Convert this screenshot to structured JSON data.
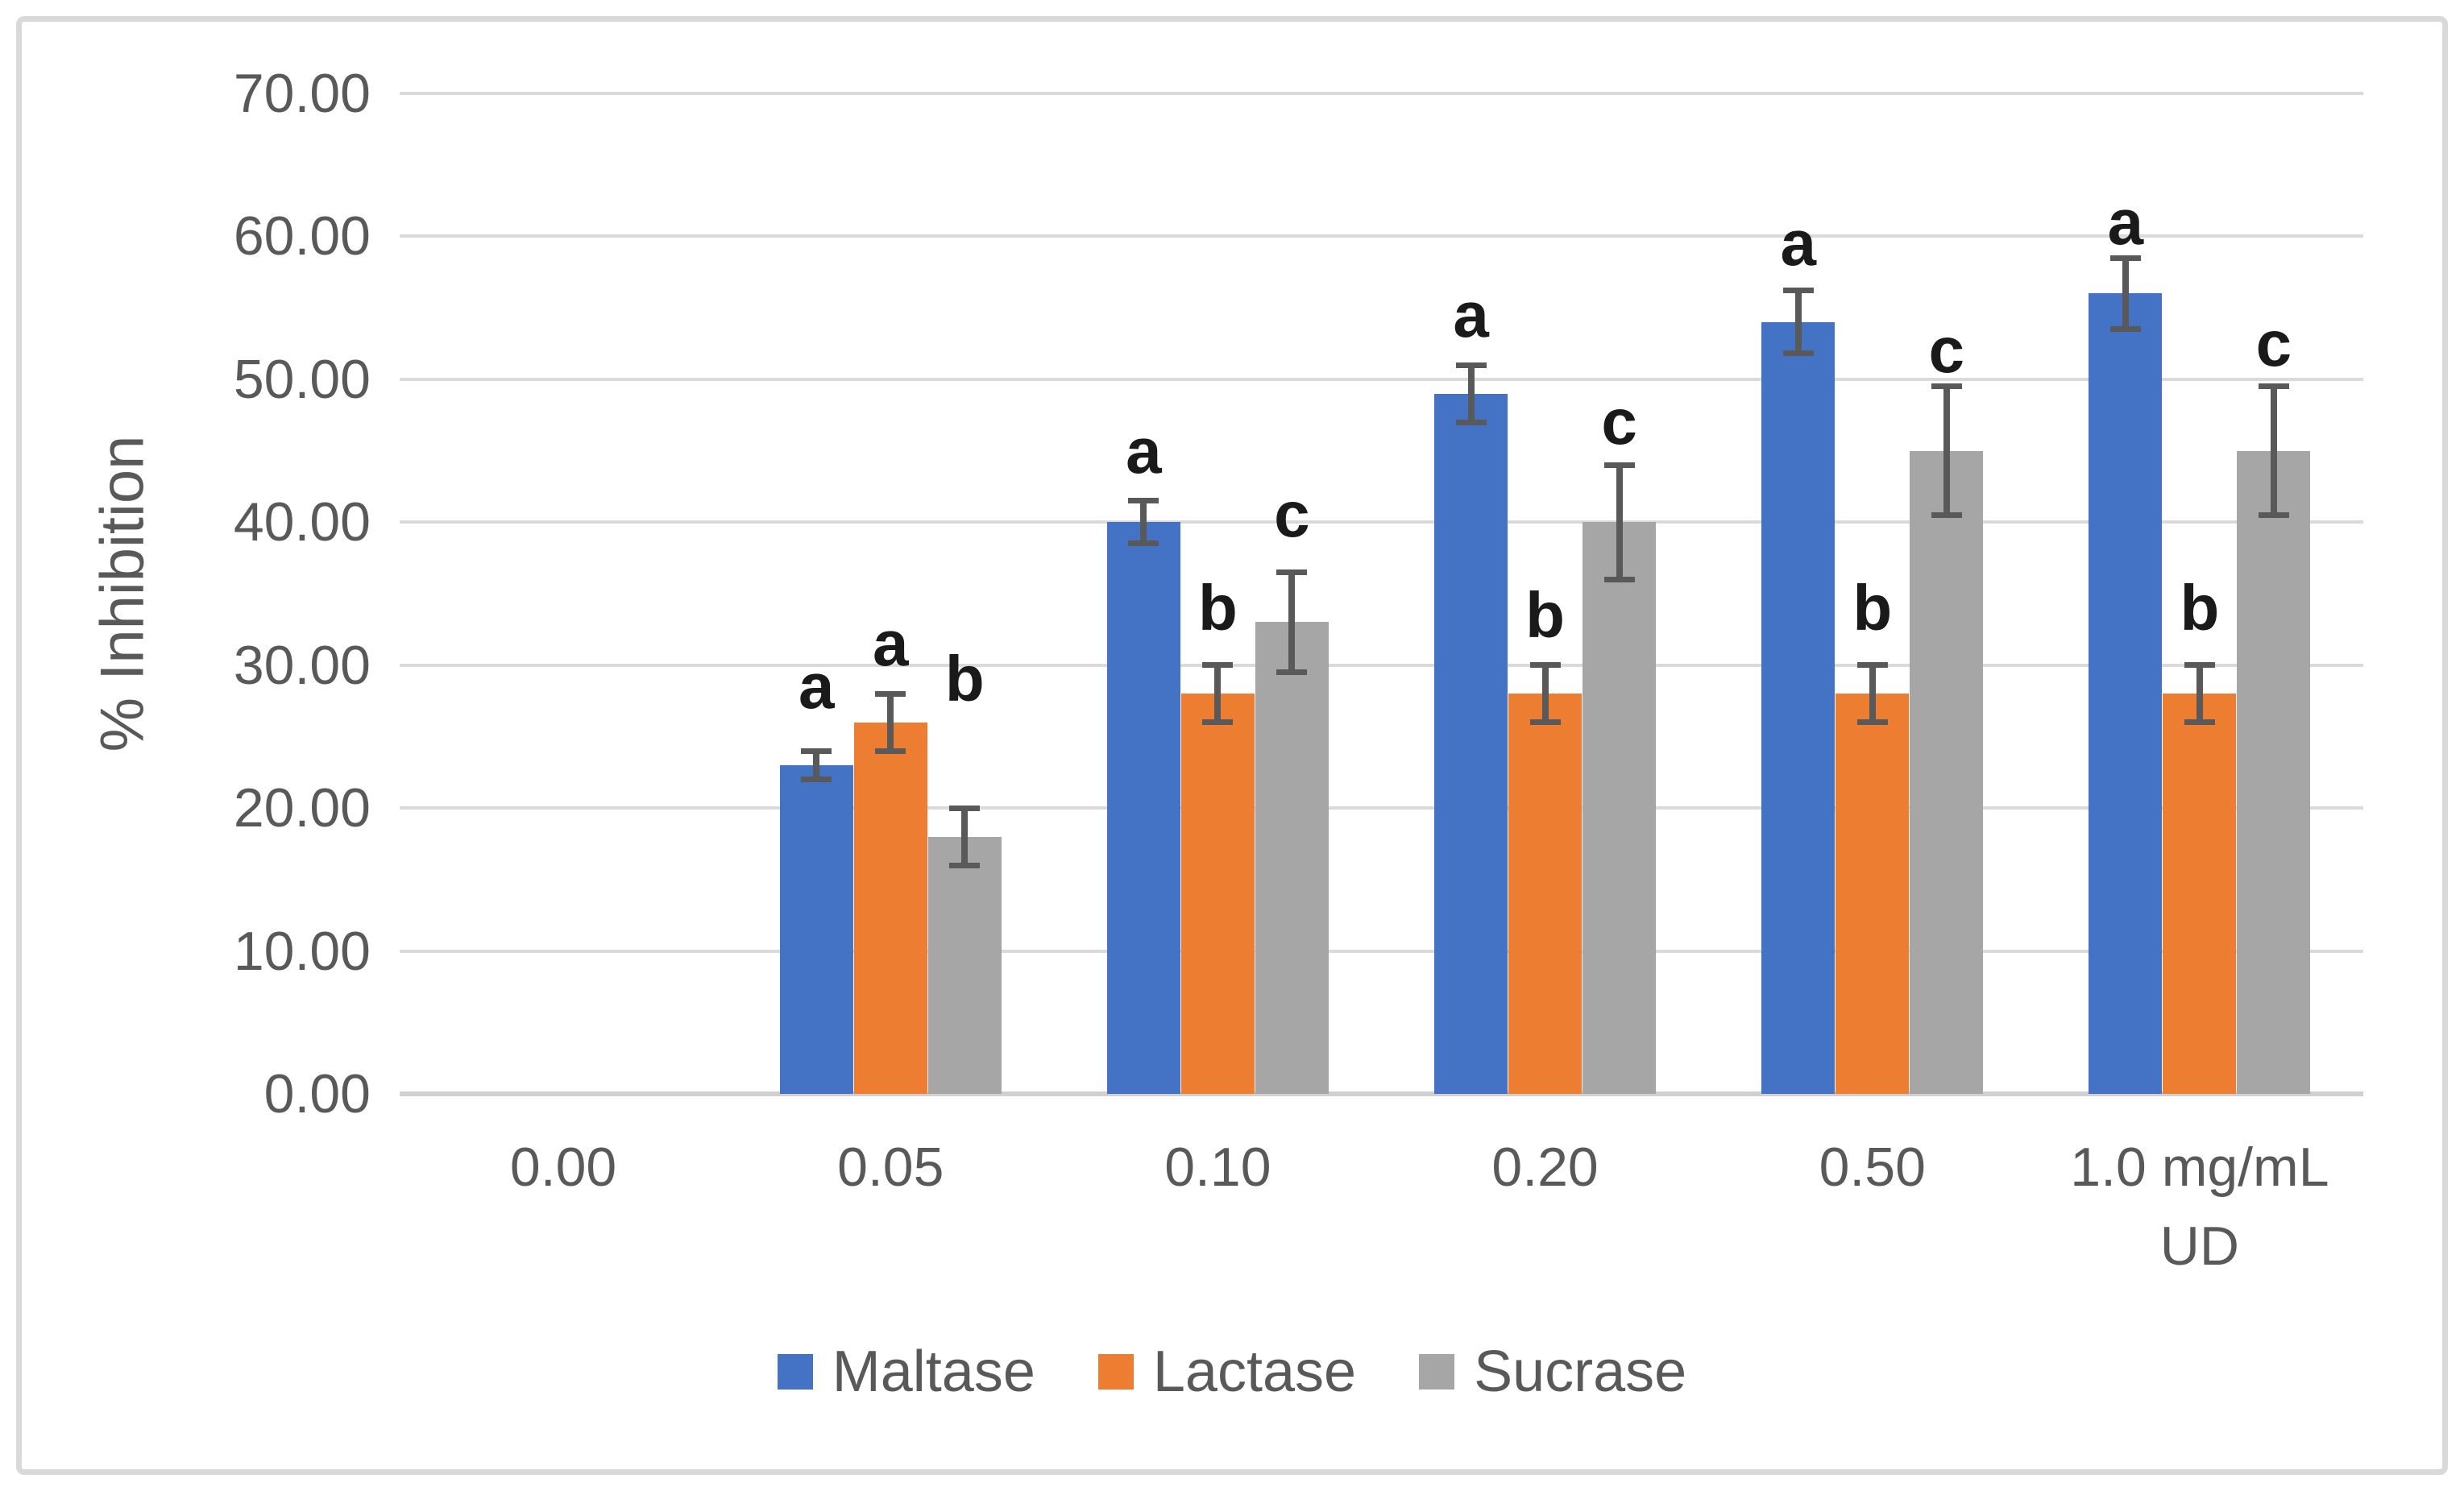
{
  "chart_data": {
    "type": "bar",
    "title": "",
    "ylabel": "% Inhibition",
    "xlabel": "",
    "ylim": [
      0,
      70
    ],
    "ytick_step": 10,
    "yticks": [
      "0.00",
      "10.00",
      "20.00",
      "30.00",
      "40.00",
      "50.00",
      "60.00",
      "70.00"
    ],
    "grid": true,
    "legend_position": "bottom",
    "categories": [
      "0.00",
      "0.05",
      "0.10",
      "0.20",
      "0.50",
      "1.0 mg/mL\nUD"
    ],
    "series": [
      {
        "name": "Maltase",
        "color": "#4472c4",
        "values": [
          0,
          23,
          40,
          49,
          54,
          56
        ],
        "errors": [
          0,
          1,
          1.5,
          2,
          2.2,
          2.5
        ],
        "letters": [
          "",
          "a",
          "a",
          "a",
          "a",
          "a"
        ],
        "letter_y": [
          null,
          28.5,
          45,
          54.5,
          59.5,
          61
        ]
      },
      {
        "name": "Lactase",
        "color": "#ed7d31",
        "values": [
          0,
          26,
          28,
          28,
          28,
          28
        ],
        "errors": [
          0,
          2,
          2,
          2,
          2,
          2
        ],
        "letters": [
          "",
          "a",
          "b",
          "b",
          "b",
          "b"
        ],
        "letter_y": [
          null,
          31.5,
          34,
          33.5,
          34,
          34
        ]
      },
      {
        "name": "Sucrase",
        "color": "#a6a6a6",
        "values": [
          0,
          18,
          33,
          40,
          45,
          45
        ],
        "errors": [
          0,
          2,
          3.5,
          4,
          4.5,
          4.5
        ],
        "letters": [
          "",
          "b",
          "c",
          "c",
          "c",
          "c"
        ],
        "letter_y": [
          null,
          29,
          40.5,
          47,
          52,
          52.5
        ]
      }
    ],
    "colors": {
      "gridline": "#dadada",
      "axis_text": "#595959",
      "error_bar": "#595959",
      "letter_text": "#1a1a1a",
      "frame_border": "#d9d9d9"
    }
  }
}
